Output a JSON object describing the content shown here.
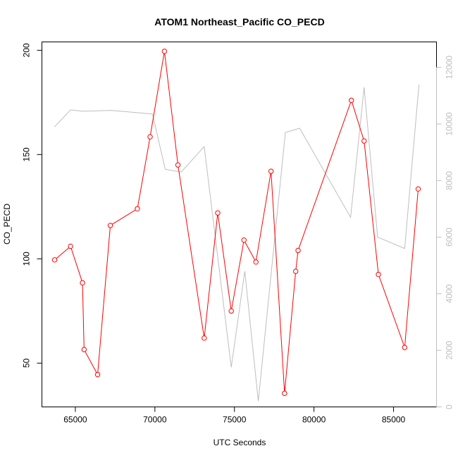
{
  "chart_data": {
    "type": "line",
    "title": "ATOM1 Northeast_Pacific CO_PECD",
    "xlabel": "UTC Seconds",
    "ylabel": "CO_PECD",
    "xlim": [
      62900,
      87700
    ],
    "ylim": [
      29,
      204
    ],
    "y2lim": [
      0,
      12900
    ],
    "x_ticks": [
      65000,
      70000,
      75000,
      80000,
      85000
    ],
    "y_ticks": [
      50,
      100,
      150,
      200
    ],
    "y2_ticks": [
      0,
      2000,
      4000,
      6000,
      8000,
      10000,
      12000
    ],
    "grid": false,
    "colors": {
      "primary": "#ff0000",
      "secondary": "#bebebe",
      "axis": "#000000"
    },
    "series": [
      {
        "axis": "left",
        "style": "line-with-open-circles",
        "x": [
          63700,
          64700,
          65450,
          65550,
          66400,
          67200,
          68900,
          69700,
          70600,
          71450,
          73100,
          73950,
          74800,
          75600,
          76350,
          77300,
          78150,
          78850,
          79000,
          82350,
          83150,
          84050,
          85700,
          86550
        ],
        "y": [
          99.5,
          106,
          88.5,
          56.5,
          44.5,
          116,
          124,
          158.5,
          199.5,
          145,
          62,
          122,
          75,
          109,
          98.5,
          142,
          35.5,
          94,
          104,
          176,
          156.5,
          92.5,
          57.5,
          133.5
        ]
      },
      {
        "axis": "right",
        "style": "line",
        "x": [
          63700,
          64700,
          65450,
          67200,
          68900,
          69850,
          70650,
          71650,
          73100,
          74800,
          75650,
          76500,
          78200,
          79100,
          82300,
          83150,
          84000,
          85700,
          86600
        ],
        "y": [
          9900,
          10500,
          10450,
          10480,
          10400,
          10350,
          8400,
          8300,
          9200,
          1400,
          4800,
          200,
          9700,
          9850,
          6700,
          11300,
          6000,
          5600,
          11400
        ]
      }
    ]
  }
}
